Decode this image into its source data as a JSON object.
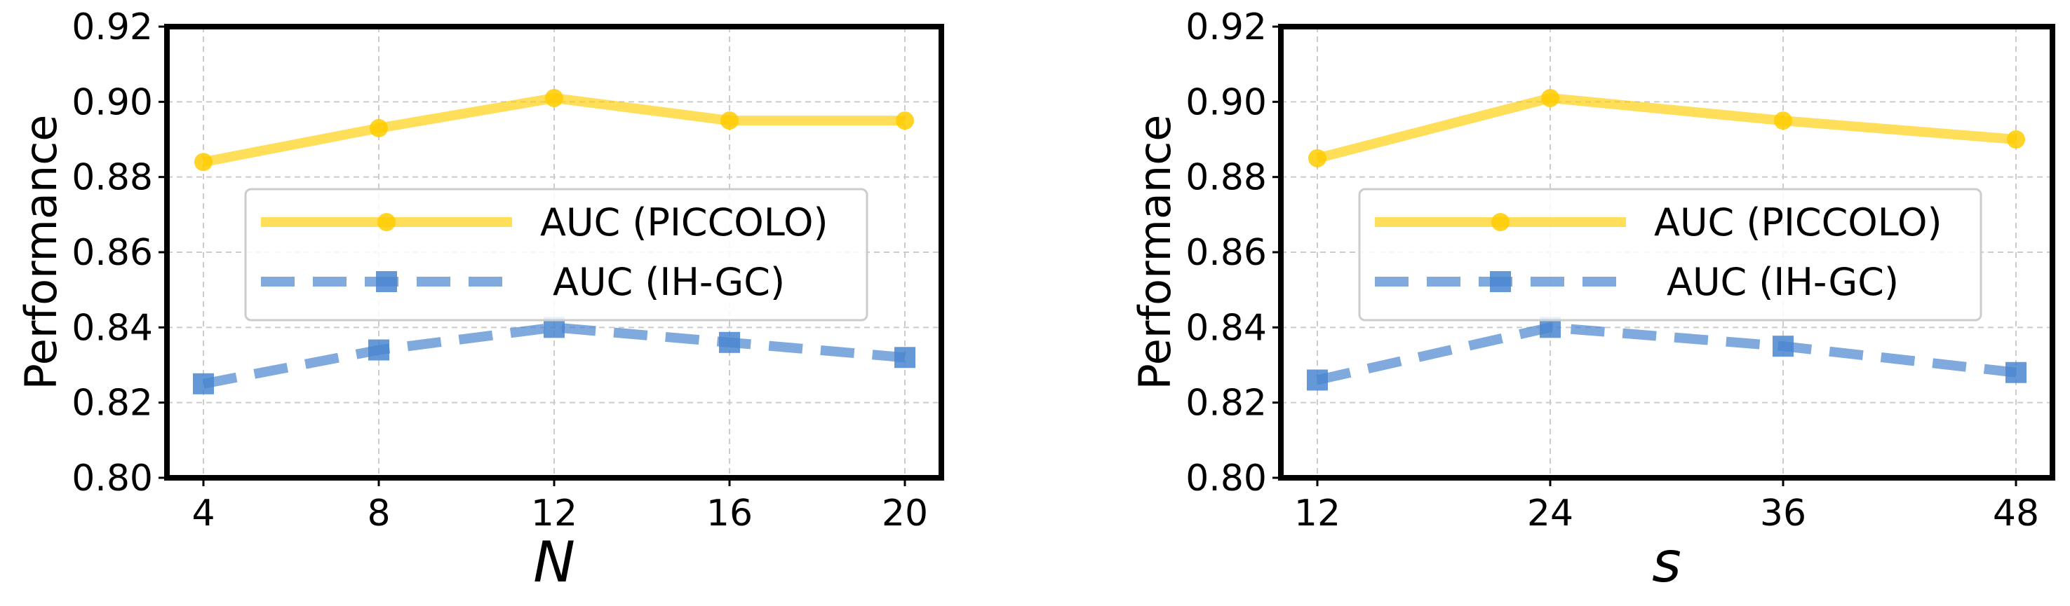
{
  "colors": {
    "piccolo": "#FFCC00",
    "ihgc": "#4A86D0"
  },
  "chart_data": [
    {
      "type": "line",
      "xlabel": "N",
      "ylabel": "Performance",
      "categories": [
        "4",
        "8",
        "12",
        "16",
        "20"
      ],
      "ylim": [
        0.8,
        0.92
      ],
      "yticks": [
        "0.80",
        "0.82",
        "0.84",
        "0.86",
        "0.88",
        "0.90",
        "0.92"
      ],
      "grid": true,
      "legend_position": "center-left",
      "series": [
        {
          "name": "AUC (PICCOLO)",
          "values": [
            0.884,
            0.893,
            0.901,
            0.895,
            0.895
          ],
          "marker": "circle",
          "style": "solid"
        },
        {
          "name": "AUC (IH-GC)",
          "values": [
            0.825,
            0.834,
            0.84,
            0.836,
            0.832
          ],
          "marker": "square",
          "style": "dashed"
        }
      ]
    },
    {
      "type": "line",
      "xlabel": "s",
      "ylabel": "Performance",
      "categories": [
        "12",
        "24",
        "36",
        "48"
      ],
      "ylim": [
        0.8,
        0.92
      ],
      "yticks": [
        "0.80",
        "0.82",
        "0.84",
        "0.86",
        "0.88",
        "0.90",
        "0.92"
      ],
      "grid": true,
      "legend_position": "center-left",
      "series": [
        {
          "name": "AUC (PICCOLO)",
          "values": [
            0.885,
            0.901,
            0.895,
            0.89
          ],
          "marker": "circle",
          "style": "solid"
        },
        {
          "name": "AUC (IH-GC)",
          "values": [
            0.826,
            0.84,
            0.835,
            0.828
          ],
          "marker": "square",
          "style": "dashed"
        }
      ]
    }
  ]
}
